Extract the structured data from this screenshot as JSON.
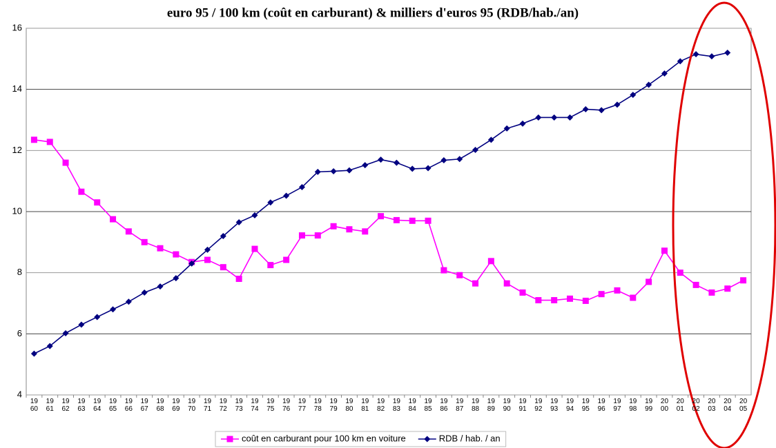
{
  "chart_data": {
    "type": "line",
    "title": "euro 95 / 100 km (coût en carburant) & milliers d'euros 95 (RDB/hab./an)",
    "categories": [
      "1960",
      "1961",
      "1962",
      "1963",
      "1964",
      "1965",
      "1966",
      "1967",
      "1968",
      "1969",
      "1970",
      "1971",
      "1972",
      "1973",
      "1974",
      "1975",
      "1976",
      "1977",
      "1978",
      "1979",
      "1980",
      "1981",
      "1982",
      "1983",
      "1984",
      "1985",
      "1986",
      "1987",
      "1988",
      "1989",
      "1990",
      "1991",
      "1992",
      "1993",
      "1994",
      "1995",
      "1996",
      "1997",
      "1998",
      "1999",
      "2000",
      "2001",
      "2002",
      "2003",
      "2004",
      "2005"
    ],
    "series": [
      {
        "name": "coût en carburant pour 100 km en voiture",
        "color": "#ff00ff",
        "marker": "square",
        "values": [
          12.35,
          12.28,
          11.6,
          10.65,
          10.3,
          9.75,
          9.35,
          9.0,
          8.8,
          8.6,
          8.35,
          8.42,
          8.18,
          7.8,
          8.78,
          8.25,
          8.42,
          9.22,
          9.22,
          9.52,
          9.42,
          9.35,
          9.85,
          9.72,
          9.7,
          9.7,
          8.08,
          7.92,
          7.65,
          8.38,
          7.65,
          7.35,
          7.1,
          7.1,
          7.15,
          7.08,
          7.3,
          7.42,
          7.18,
          7.7,
          8.72,
          8.0,
          7.6,
          7.35,
          7.48,
          7.75
        ]
      },
      {
        "name": "RDB / hab. / an",
        "color": "#000080",
        "marker": "diamond",
        "values": [
          5.35,
          5.6,
          6.02,
          6.3,
          6.55,
          6.8,
          7.05,
          7.35,
          7.55,
          7.82,
          8.3,
          8.75,
          9.2,
          9.65,
          9.88,
          10.3,
          10.52,
          10.8,
          11.3,
          11.32,
          11.35,
          11.52,
          11.7,
          11.6,
          11.4,
          11.42,
          11.68,
          11.72,
          12.02,
          12.35,
          12.72,
          12.88,
          13.08,
          13.08,
          13.08,
          13.35,
          13.32,
          13.5,
          13.82,
          14.15,
          14.52,
          14.92,
          15.15,
          15.08,
          15.2,
          null
        ]
      }
    ],
    "ylim": [
      4,
      16
    ],
    "yticks": [
      4,
      6,
      8,
      10,
      12,
      14,
      16
    ],
    "grid": true,
    "legend": "bottom"
  }
}
